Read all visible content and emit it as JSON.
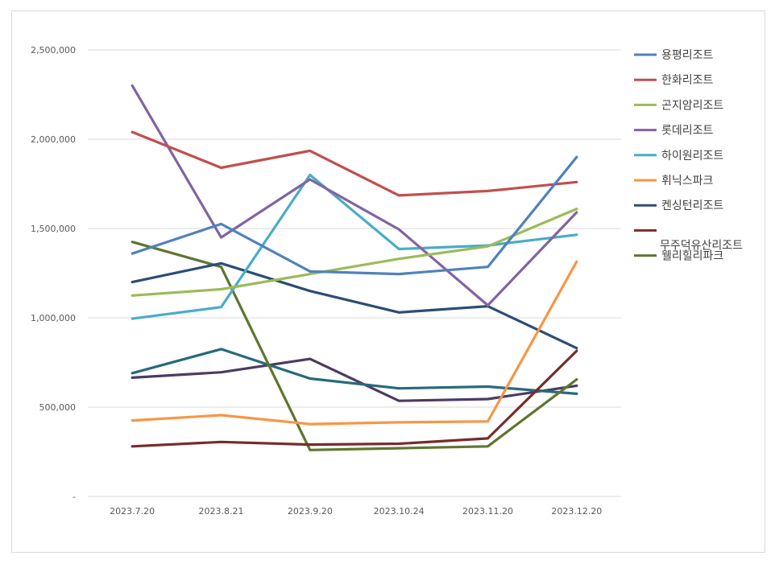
{
  "chart_data": {
    "type": "line",
    "title": "",
    "xlabel": "",
    "ylabel": "",
    "ylim": [
      0,
      2500000
    ],
    "yticks": [
      0,
      500000,
      1000000,
      1500000,
      2000000,
      2500000
    ],
    "ytick_labels": [
      "-",
      "500,000",
      "1,000,000",
      "1,500,000",
      "2,000,000",
      "2,500,000"
    ],
    "grid": true,
    "legend_position": "right",
    "categories": [
      "2023.7.20",
      "2023.8.21",
      "2023.9.20",
      "2023.10.24",
      "2023.11.20",
      "2023.12.20"
    ],
    "series": [
      {
        "name": "용평리조트",
        "color": "#4f81bd",
        "values": [
          1360000,
          1525000,
          1260000,
          1245000,
          1285000,
          1900000
        ]
      },
      {
        "name": "한화리조트",
        "color": "#c0504d",
        "values": [
          2040000,
          1840000,
          1935000,
          1685000,
          1710000,
          1760000
        ]
      },
      {
        "name": "곤지암리조트",
        "color": "#9bbb59",
        "values": [
          1125000,
          1160000,
          1245000,
          1330000,
          1400000,
          1610000
        ]
      },
      {
        "name": "롯데리조트",
        "color": "#8064a2",
        "values": [
          2300000,
          1450000,
          1775000,
          1495000,
          1070000,
          1590000
        ]
      },
      {
        "name": "하이원리조트",
        "color": "#4bacc6",
        "values": [
          995000,
          1060000,
          1800000,
          1385000,
          1405000,
          1465000
        ]
      },
      {
        "name": "휘닉스파크",
        "color": "#f79646",
        "values": [
          425000,
          455000,
          405000,
          415000,
          420000,
          1315000
        ]
      },
      {
        "name": "켄싱턴리조트",
        "color": "#2c4d75",
        "values": [
          1200000,
          1305000,
          1150000,
          1030000,
          1065000,
          830000
        ]
      },
      {
        "name": "무주덕유산리조트",
        "color": "#772c2a",
        "values": [
          280000,
          305000,
          290000,
          295000,
          325000,
          815000
        ]
      },
      {
        "name": "웰리힐리파크",
        "color": "#5f7530",
        "values": [
          1425000,
          1285000,
          260000,
          270000,
          280000,
          655000
        ]
      },
      {
        "name": "",
        "color": "#276a7c",
        "values": [
          690000,
          825000,
          660000,
          605000,
          615000,
          575000
        ]
      },
      {
        "name": "",
        "color": "#4d3b62",
        "values": [
          665000,
          695000,
          770000,
          535000,
          545000,
          620000
        ]
      }
    ]
  }
}
